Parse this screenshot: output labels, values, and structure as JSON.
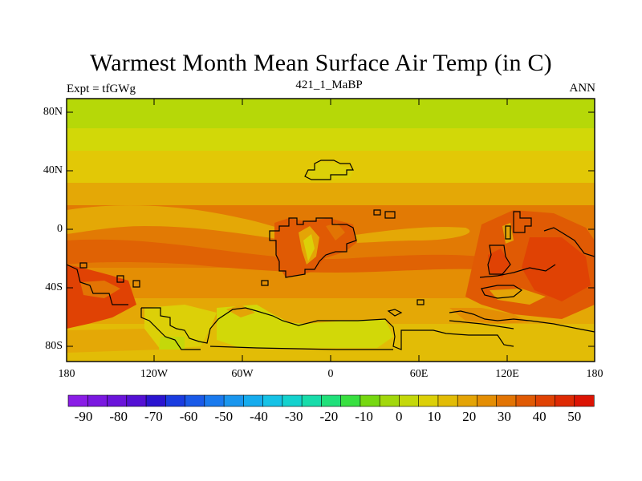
{
  "header": {
    "title": "Warmest Month Mean Surface Air Temp (in C)",
    "left": "Expt = tfGWg",
    "center": "421_1_MaBP",
    "right": "ANN"
  },
  "map": {
    "lat_ticks": [
      "80N",
      "40N",
      "0",
      "40S",
      "80S"
    ],
    "lon_ticks": [
      "180",
      "120W",
      "60W",
      "0",
      "60E",
      "120E",
      "180"
    ]
  },
  "colorbar": {
    "labels": [
      "-90",
      "-80",
      "-70",
      "-60",
      "-50",
      "-40",
      "-30",
      "-20",
      "-10",
      "0",
      "10",
      "20",
      "30",
      "40",
      "50"
    ],
    "colors": [
      "#8a1de6",
      "#7a18e0",
      "#6a14da",
      "#5410d4",
      "#2a14d0",
      "#1a3ce0",
      "#1a5ae8",
      "#1a7aee",
      "#1a96ee",
      "#16acee",
      "#16c2e6",
      "#14d2ce",
      "#18dcaa",
      "#20e07a",
      "#38e040",
      "#76d810",
      "#a2d80c",
      "#c4d80a",
      "#dcd008",
      "#e2bc06",
      "#e4a406",
      "#e48e04",
      "#e27404",
      "#e05a04",
      "#e04204",
      "#de2a04",
      "#dc1404"
    ]
  }
}
